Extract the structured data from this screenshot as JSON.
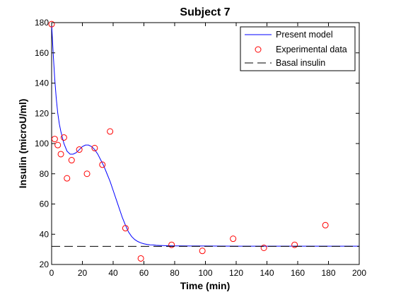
{
  "chart_data": {
    "type": "line",
    "title": "Subject 7",
    "xlabel": "Time (min)",
    "ylabel": "Insulin (microU/ml)",
    "xlim": [
      0,
      200
    ],
    "ylim": [
      20,
      180
    ],
    "xticks": [
      0,
      20,
      40,
      60,
      80,
      100,
      120,
      140,
      160,
      180,
      200
    ],
    "yticks": [
      20,
      40,
      60,
      80,
      100,
      120,
      140,
      160,
      180
    ],
    "grid": false,
    "legend_position": "top-right",
    "series": [
      {
        "name": "Present model",
        "kind": "line",
        "style": "solid",
        "color": "#0000ff",
        "x": [
          0,
          1,
          2,
          3,
          4,
          5,
          6,
          7,
          8,
          10,
          12,
          14,
          16,
          18,
          20,
          22,
          24,
          26,
          28,
          30,
          32,
          34,
          36,
          38,
          40,
          42,
          44,
          46,
          48,
          50,
          52,
          54,
          56,
          58,
          60,
          62,
          64,
          66,
          68,
          70,
          72,
          75,
          80,
          90,
          100,
          120,
          140,
          160,
          180,
          200
        ],
        "y": [
          179,
          160,
          143,
          130,
          120,
          113,
          108,
          104,
          100,
          95,
          93,
          93,
          94,
          96,
          98,
          99,
          99,
          98,
          96,
          93,
          89,
          85,
          80,
          75,
          69,
          63,
          57,
          51,
          46,
          41.5,
          38.5,
          36.5,
          35.2,
          34.3,
          33.7,
          33.3,
          33,
          32.9,
          32.7,
          32.6,
          32.5,
          32.4,
          32.3,
          32.2,
          32.2,
          32.1,
          32.1,
          32.1,
          32.1,
          32.1
        ]
      },
      {
        "name": "Experimental data",
        "kind": "scatter",
        "marker": "circle",
        "color": "#ff0000",
        "points": [
          [
            0,
            179
          ],
          [
            2,
            103
          ],
          [
            4,
            99
          ],
          [
            6,
            93
          ],
          [
            8,
            104
          ],
          [
            10,
            77
          ],
          [
            13,
            89
          ],
          [
            18,
            96
          ],
          [
            23,
            80
          ],
          [
            28,
            97
          ],
          [
            33,
            86
          ],
          [
            38,
            108
          ],
          [
            48,
            44
          ],
          [
            58,
            24
          ],
          [
            78,
            33
          ],
          [
            98,
            29
          ],
          [
            118,
            37
          ],
          [
            138,
            31
          ],
          [
            158,
            33
          ],
          [
            178,
            46
          ]
        ]
      },
      {
        "name": "Basal insulin",
        "kind": "line",
        "style": "dashed",
        "color": "#000000",
        "x": [
          0,
          200
        ],
        "y": [
          32,
          32
        ]
      }
    ]
  }
}
